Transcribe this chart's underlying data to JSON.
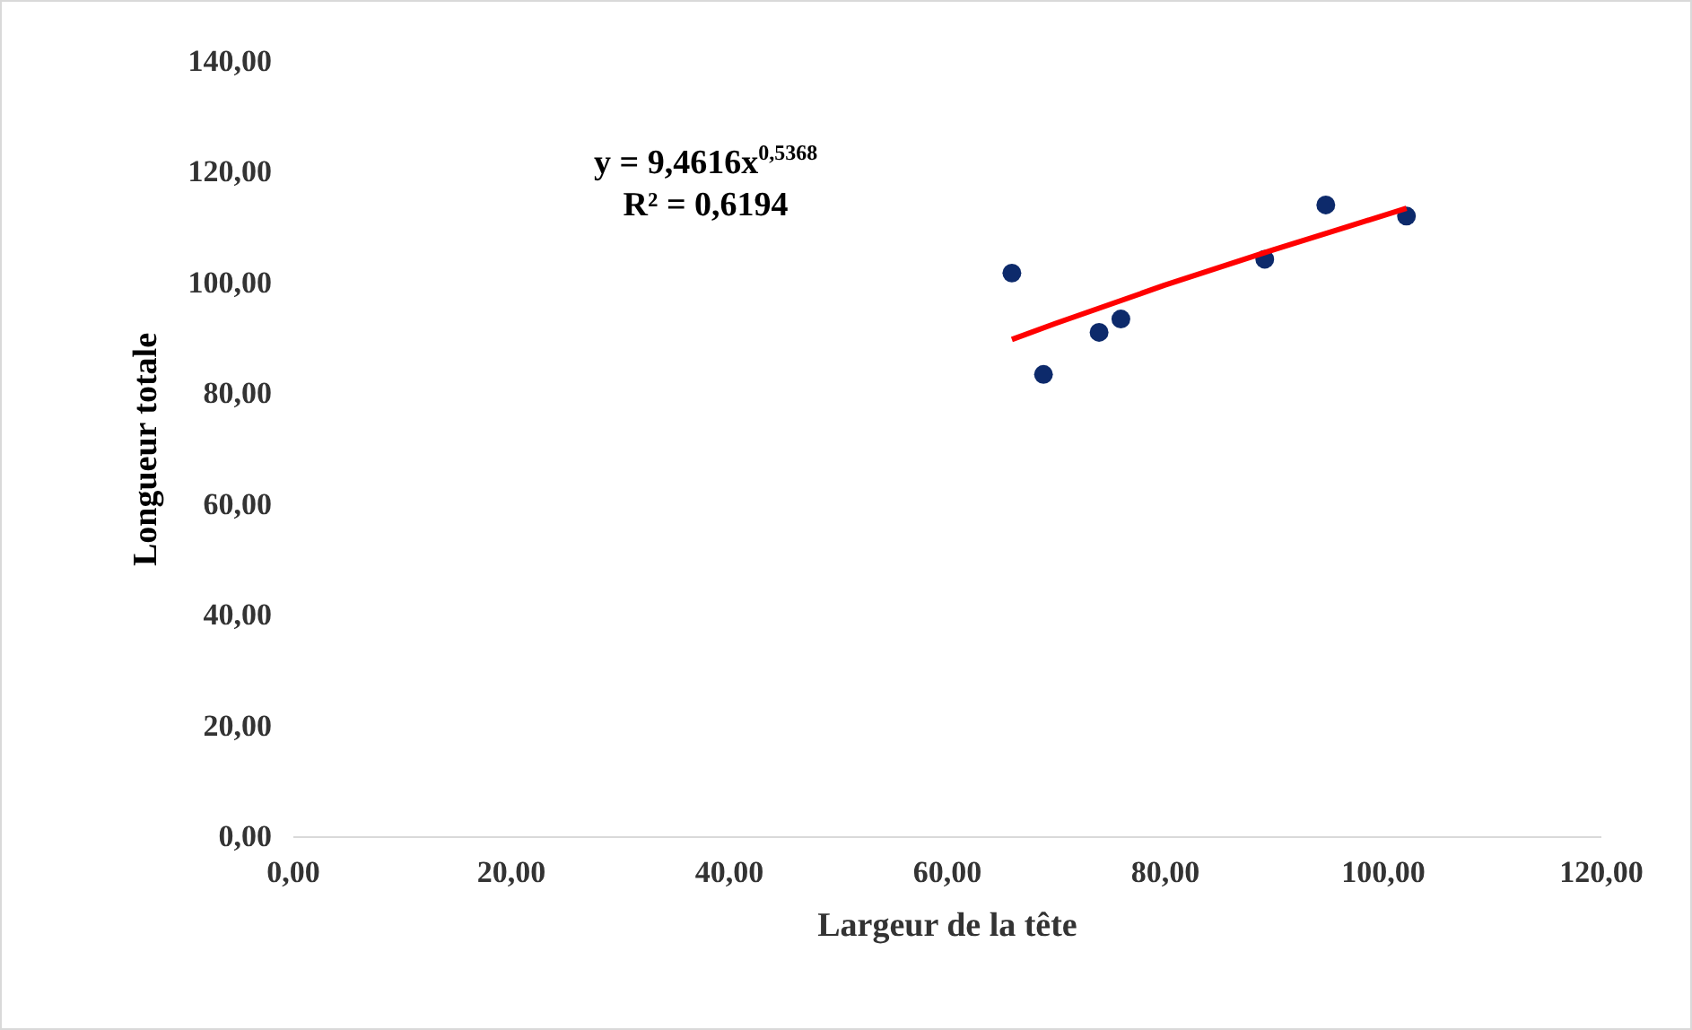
{
  "chart_data": {
    "type": "scatter",
    "xlabel": "Largeur de la tête",
    "ylabel": "Longueur totale",
    "series": [
      {
        "color": "#0d2a6b",
        "x": [
          66.0,
          68.9,
          74.0,
          76.0,
          89.2,
          94.8,
          102.2
        ],
        "values": [
          101.7,
          83.4,
          91.0,
          93.4,
          104.2,
          114.0,
          112.0
        ]
      },
      {
        "type": "line",
        "marker": "none",
        "color": "#ff0000",
        "x": [
          66.0,
          70,
          80,
          90,
          102.2
        ],
        "values": [
          89.7,
          92.6,
          99.5,
          105.9,
          113.4
        ]
      }
    ],
    "annotations": [
      "y = 9,4616x$^{0,5368}$",
      "R² = 0,6194"
    ],
    "xlim": [
      0,
      120
    ],
    "xticks": [
      {
        "value": 0,
        "label": "0,00"
      },
      {
        "value": 20,
        "label": "20,00"
      },
      {
        "value": 40,
        "label": "40,00"
      },
      {
        "value": 60,
        "label": "60,00"
      },
      {
        "value": 80,
        "label": "80,00"
      },
      {
        "value": 100,
        "label": "100,00"
      },
      {
        "value": 120,
        "label": "120,00"
      }
    ],
    "ylim": [
      0,
      140
    ],
    "yticks": [
      {
        "value": 0,
        "label": "0,00"
      },
      {
        "value": 20,
        "label": "20,00"
      },
      {
        "value": 40,
        "label": "40,00"
      },
      {
        "value": 60,
        "label": "60,00"
      },
      {
        "value": 80,
        "label": "80,00"
      },
      {
        "value": 100,
        "label": "100,00"
      },
      {
        "value": 120,
        "label": "120,00"
      },
      {
        "value": 140,
        "label": "140,00"
      }
    ],
    "grid": false,
    "marker": "circle"
  }
}
